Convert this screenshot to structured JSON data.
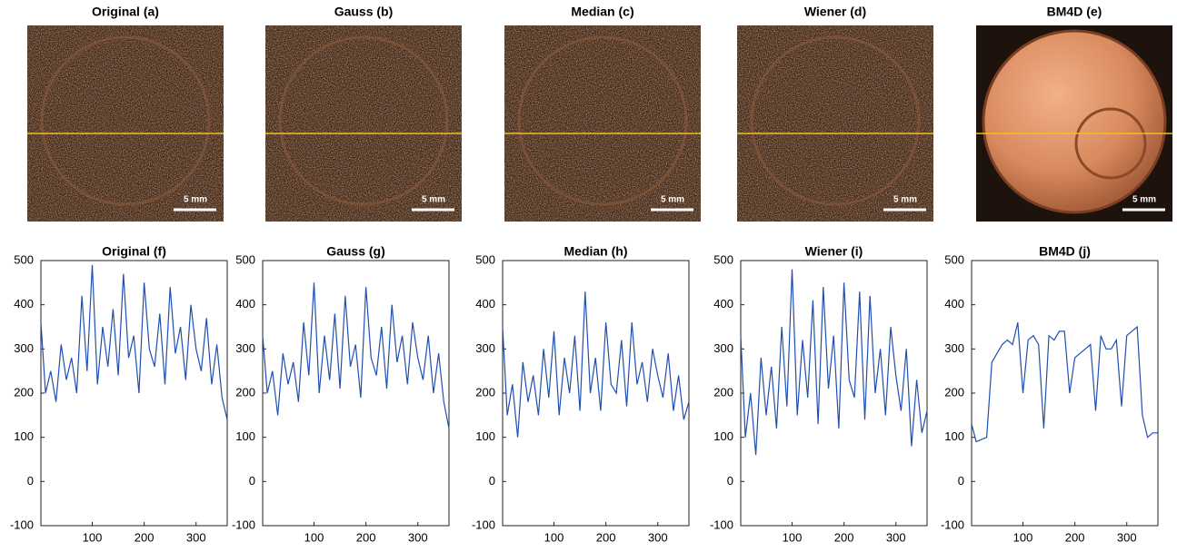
{
  "panels": [
    {
      "title": "Original (a)",
      "scale": "5 mm"
    },
    {
      "title": "Gauss (b)",
      "scale": "5 mm"
    },
    {
      "title": "Median (c)",
      "scale": "5 mm"
    },
    {
      "title": "Wiener (d)",
      "scale": "5 mm"
    },
    {
      "title": "BM4D (e)",
      "scale": "5 mm"
    }
  ],
  "chart_data": [
    {
      "type": "line",
      "title": "Original (f)",
      "color": "#1f4fb0",
      "xlim": [
        1,
        360
      ],
      "ylim": [
        -100,
        500
      ],
      "xticks": [
        100,
        200,
        300
      ],
      "yticks": [
        -100,
        0,
        100,
        200,
        300,
        400,
        500
      ],
      "x": [
        1,
        10,
        20,
        30,
        40,
        50,
        60,
        70,
        80,
        90,
        100,
        110,
        120,
        130,
        140,
        150,
        160,
        170,
        180,
        190,
        200,
        210,
        220,
        230,
        240,
        250,
        260,
        270,
        280,
        290,
        300,
        310,
        320,
        330,
        340,
        350,
        360
      ],
      "values": [
        360,
        200,
        250,
        180,
        310,
        230,
        280,
        200,
        420,
        250,
        490,
        220,
        350,
        260,
        390,
        240,
        470,
        280,
        330,
        200,
        450,
        300,
        260,
        380,
        220,
        440,
        290,
        350,
        230,
        400,
        300,
        250,
        370,
        220,
        310,
        190,
        140
      ]
    },
    {
      "type": "line",
      "title": "Gauss (g)",
      "color": "#1f4fb0",
      "xlim": [
        1,
        360
      ],
      "ylim": [
        -100,
        500
      ],
      "xticks": [
        100,
        200,
        300
      ],
      "yticks": [
        -100,
        0,
        100,
        200,
        300,
        400,
        500
      ],
      "x": [
        1,
        10,
        20,
        30,
        40,
        50,
        60,
        70,
        80,
        90,
        100,
        110,
        120,
        130,
        140,
        150,
        160,
        170,
        180,
        190,
        200,
        210,
        220,
        230,
        240,
        250,
        260,
        270,
        280,
        290,
        300,
        310,
        320,
        330,
        340,
        350,
        360
      ],
      "values": [
        330,
        200,
        250,
        150,
        290,
        220,
        270,
        180,
        360,
        240,
        450,
        200,
        330,
        230,
        380,
        210,
        420,
        260,
        310,
        190,
        440,
        280,
        240,
        350,
        210,
        400,
        270,
        330,
        220,
        360,
        280,
        230,
        330,
        200,
        290,
        180,
        120
      ]
    },
    {
      "type": "line",
      "title": "Median (h)",
      "color": "#1f4fb0",
      "xlim": [
        1,
        360
      ],
      "ylim": [
        -100,
        500
      ],
      "xticks": [
        100,
        200,
        300
      ],
      "yticks": [
        -100,
        0,
        100,
        200,
        300,
        400,
        500
      ],
      "x": [
        1,
        10,
        20,
        30,
        40,
        50,
        60,
        70,
        80,
        90,
        100,
        110,
        120,
        130,
        140,
        150,
        160,
        170,
        180,
        190,
        200,
        210,
        220,
        230,
        240,
        250,
        260,
        270,
        280,
        290,
        300,
        310,
        320,
        330,
        340,
        350,
        360
      ],
      "values": [
        350,
        150,
        220,
        100,
        270,
        180,
        240,
        150,
        300,
        190,
        340,
        150,
        280,
        200,
        330,
        160,
        430,
        200,
        280,
        160,
        360,
        220,
        200,
        320,
        170,
        360,
        220,
        270,
        180,
        300,
        240,
        190,
        290,
        160,
        240,
        140,
        180
      ]
    },
    {
      "type": "line",
      "title": "Wiener (i)",
      "color": "#1f4fb0",
      "xlim": [
        1,
        360
      ],
      "ylim": [
        -100,
        500
      ],
      "xticks": [
        100,
        200,
        300
      ],
      "yticks": [
        -100,
        0,
        100,
        200,
        300,
        400,
        500
      ],
      "x": [
        1,
        10,
        20,
        30,
        40,
        50,
        60,
        70,
        80,
        90,
        100,
        110,
        120,
        130,
        140,
        150,
        160,
        170,
        180,
        190,
        200,
        210,
        220,
        230,
        240,
        250,
        260,
        270,
        280,
        290,
        300,
        310,
        320,
        330,
        340,
        350,
        360
      ],
      "values": [
        330,
        100,
        200,
        60,
        280,
        150,
        260,
        120,
        350,
        170,
        480,
        150,
        320,
        190,
        410,
        130,
        440,
        210,
        330,
        120,
        450,
        230,
        190,
        430,
        140,
        420,
        200,
        300,
        150,
        350,
        240,
        160,
        300,
        80,
        230,
        110,
        160
      ]
    },
    {
      "type": "line",
      "title": "BM4D (j)",
      "color": "#1f4fb0",
      "xlim": [
        1,
        360
      ],
      "ylim": [
        -100,
        500
      ],
      "xticks": [
        100,
        200,
        300
      ],
      "yticks": [
        -100,
        0,
        100,
        200,
        300,
        400,
        500
      ],
      "x": [
        1,
        10,
        20,
        30,
        40,
        50,
        60,
        70,
        80,
        90,
        100,
        110,
        120,
        130,
        140,
        150,
        160,
        170,
        180,
        190,
        200,
        210,
        220,
        230,
        240,
        250,
        260,
        270,
        280,
        290,
        300,
        310,
        320,
        330,
        340,
        350,
        360
      ],
      "values": [
        130,
        90,
        95,
        100,
        270,
        290,
        310,
        320,
        310,
        360,
        200,
        320,
        330,
        310,
        120,
        330,
        320,
        340,
        340,
        200,
        280,
        290,
        300,
        310,
        160,
        330,
        300,
        300,
        320,
        170,
        330,
        340,
        350,
        150,
        100,
        110,
        110
      ]
    }
  ]
}
